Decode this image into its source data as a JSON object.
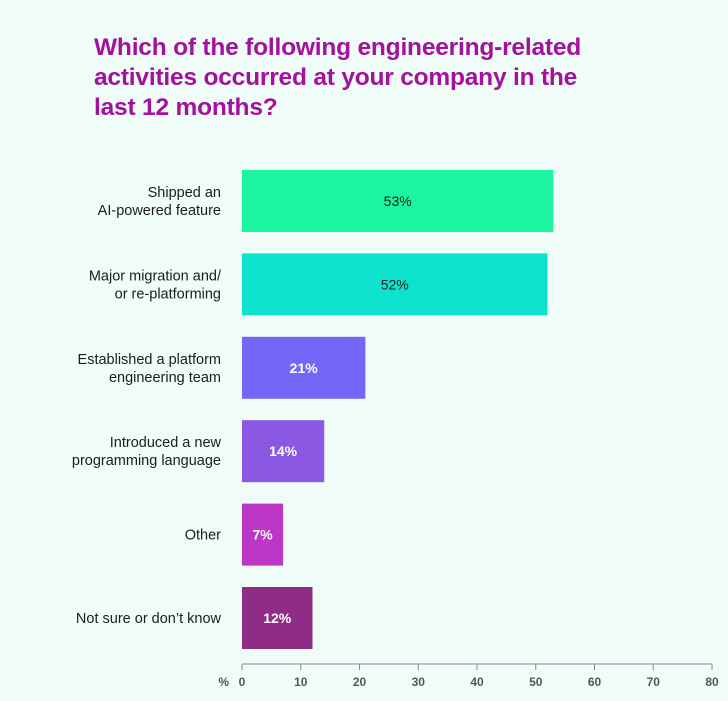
{
  "title": "Which of the following engineering-related activities occurred at your company in the last 12 months?",
  "chart_data": {
    "type": "bar",
    "orientation": "horizontal",
    "title": "Which of the following engineering-related activities occurred at your company in the last 12 months?",
    "categories": [
      [
        "Shipped an",
        "AI-powered feature"
      ],
      [
        "Major migration and/",
        "or re-platforming"
      ],
      [
        "Established a platform",
        "engineering team"
      ],
      [
        "Introduced a new",
        "programming language"
      ],
      [
        "Other"
      ],
      [
        "Not sure or don’t know"
      ]
    ],
    "values": [
      53,
      52,
      21,
      14,
      7,
      12
    ],
    "value_labels": [
      "53%",
      "52%",
      "21%",
      "14%",
      "7%",
      "12%"
    ],
    "bar_colors": [
      "#1bf5a1",
      "#0de2cd",
      "#7367f7",
      "#8a58e3",
      "#bd37c7",
      "#8f2c86"
    ],
    "label_colors": [
      "#1d1d1d",
      "#1d1d1d",
      "#ffffff",
      "#ffffff",
      "#ffffff",
      "#ffffff"
    ],
    "xlabel": "%",
    "xlim": [
      0,
      80
    ],
    "xticks": [
      0,
      10,
      20,
      30,
      40,
      50,
      60,
      70,
      80
    ],
    "grid": false,
    "legend": "none"
  }
}
